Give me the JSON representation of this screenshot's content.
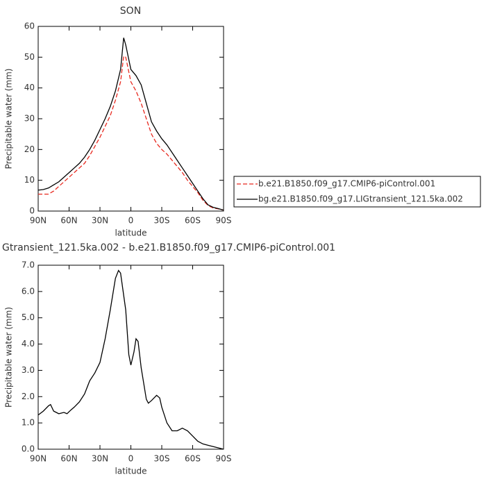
{
  "chart_data": [
    {
      "type": "line",
      "title": "SON",
      "x_label": "latitude",
      "y_label": "Precipitable water (mm)",
      "x": [
        90,
        85,
        80,
        75,
        70,
        65,
        60,
        55,
        50,
        45,
        40,
        35,
        30,
        25,
        20,
        15,
        10,
        7,
        5,
        0,
        -5,
        -10,
        -15,
        -20,
        -25,
        -30,
        -35,
        -40,
        -45,
        -50,
        -55,
        -60,
        -65,
        -70,
        -75,
        -80,
        -85,
        -90
      ],
      "series": [
        {
          "name": "b.e21.B1850.f09_g17.CMIP6-piControl.001",
          "color": "#e8281e",
          "dash": true,
          "values": [
            5.5,
            5.5,
            5.5,
            6.5,
            8,
            9.5,
            11,
            12.5,
            14,
            15.5,
            18,
            21,
            24,
            27.5,
            31,
            36,
            42,
            50.3,
            50,
            42,
            39,
            35,
            30,
            25,
            22,
            20,
            18.5,
            16.5,
            14.5,
            12.5,
            10,
            8,
            6,
            3.5,
            1.8,
            1,
            0.7,
            0.3
          ]
        },
        {
          "name": "bg.e21.B1850.f09_g17.LIGtransient_121.5ka.002",
          "color": "#000000",
          "dash": false,
          "values": [
            6.8,
            7,
            7.5,
            8.5,
            9.5,
            11,
            12.5,
            14,
            15.5,
            17.5,
            20,
            23,
            26.5,
            30,
            34,
            39,
            46,
            56.3,
            54,
            46,
            44,
            41,
            35,
            29,
            26,
            23.5,
            21.5,
            19,
            16.5,
            14,
            11.5,
            9,
            6.5,
            4,
            2,
            1.2,
            0.8,
            0.3
          ]
        }
      ],
      "xlim": [
        90,
        -90
      ],
      "xticks": [
        {
          "value": 90,
          "label": "90N"
        },
        {
          "value": 60,
          "label": "60N"
        },
        {
          "value": 30,
          "label": "30N"
        },
        0,
        {
          "value": -30,
          "label": "30S"
        },
        {
          "value": -60,
          "label": "60S"
        },
        {
          "value": -90,
          "label": "90S"
        }
      ],
      "ylim": [
        0,
        60
      ],
      "yticks": [
        0,
        10,
        20,
        30,
        40,
        50,
        60
      ],
      "legend": "right"
    },
    {
      "type": "line",
      "title": "Gtransient_121.5ka.002 - b.e21.B1850.f09_g17.CMIP6-piControl.001",
      "x_label": "latitude",
      "y_label": "Precipitable water (mm)",
      "x": [
        90,
        85,
        80,
        78,
        75,
        70,
        65,
        62,
        58,
        55,
        50,
        45,
        40,
        35,
        30,
        25,
        20,
        15,
        12,
        10,
        5,
        2,
        0,
        -3,
        -5,
        -7,
        -10,
        -15,
        -17,
        -20,
        -25,
        -28,
        -30,
        -35,
        -40,
        -45,
        -50,
        -55,
        -60,
        -65,
        -70,
        -75,
        -80,
        -85,
        -90
      ],
      "series": [
        {
          "color": "#000000",
          "dash": false,
          "values": [
            1.3,
            1.45,
            1.65,
            1.7,
            1.45,
            1.35,
            1.4,
            1.35,
            1.5,
            1.6,
            1.8,
            2.1,
            2.6,
            2.9,
            3.3,
            4.2,
            5.3,
            6.5,
            6.8,
            6.7,
            5.3,
            3.6,
            3.2,
            3.7,
            4.2,
            4.1,
            3.1,
            1.9,
            1.75,
            1.85,
            2.05,
            1.95,
            1.6,
            1.0,
            0.7,
            0.7,
            0.8,
            0.7,
            0.5,
            0.3,
            0.2,
            0.15,
            0.1,
            0.05,
            0.0
          ]
        }
      ],
      "xlim": [
        90,
        -90
      ],
      "xticks": [
        {
          "value": 90,
          "label": "90N"
        },
        {
          "value": 60,
          "label": "60N"
        },
        {
          "value": 30,
          "label": "30N"
        },
        0,
        {
          "value": -30,
          "label": "30S"
        },
        {
          "value": -60,
          "label": "60S"
        },
        {
          "value": -90,
          "label": "90S"
        }
      ],
      "ylim": [
        0,
        7
      ],
      "yticks": [
        {
          "value": 0,
          "label": "0.0"
        },
        {
          "value": 1,
          "label": "1.0"
        },
        {
          "value": 2,
          "label": "2.0"
        },
        {
          "value": 3,
          "label": "3.0"
        },
        {
          "value": 4,
          "label": "4.0"
        },
        {
          "value": 5,
          "label": "5.0"
        },
        {
          "value": 6,
          "label": "6.0"
        },
        {
          "value": 7,
          "label": "7.0"
        }
      ]
    }
  ]
}
